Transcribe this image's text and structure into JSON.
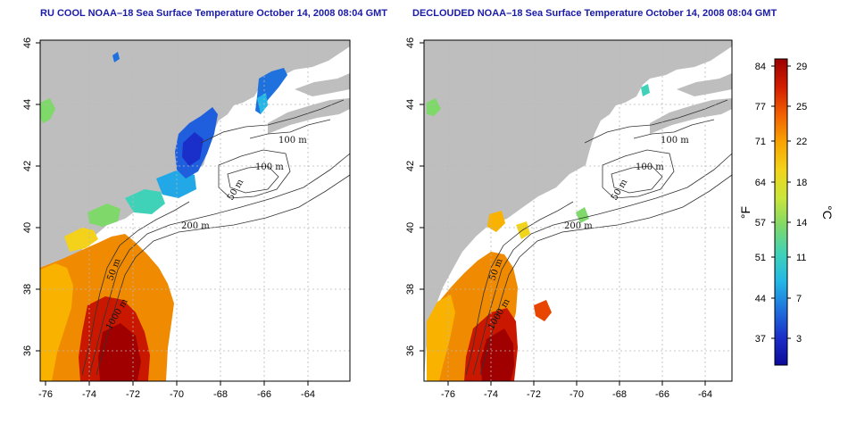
{
  "panels": [
    {
      "title": "RU COOL NOAA–18 Sea Surface Temperature October 14, 2008 08:04 GMT",
      "x_ticks": [
        "-76",
        "-74",
        "-72",
        "-70",
        "-68",
        "-66",
        "-64"
      ],
      "y_ticks": [
        "46",
        "44",
        "42",
        "40",
        "38",
        "36"
      ],
      "contour_labels": [
        "100 m",
        "100 m",
        "50 m",
        "200 m",
        "50 m",
        "1000 m"
      ]
    },
    {
      "title": "DECLOUDED NOAA–18 Sea Surface Temperature October 14, 2008 08:04 GMT",
      "x_ticks": [
        "-76",
        "-74",
        "-72",
        "-70",
        "-68",
        "-66",
        "-64"
      ],
      "y_ticks": [
        "46",
        "44",
        "42",
        "40",
        "38",
        "36"
      ],
      "contour_labels": [
        "100 m",
        "100 m",
        "50 m",
        "200 m",
        "50 m",
        "1000 m"
      ]
    }
  ],
  "colorbar": {
    "fahrenheit_ticks": [
      "84",
      "77",
      "71",
      "64",
      "57",
      "51",
      "44",
      "37"
    ],
    "celsius_ticks": [
      "29",
      "25",
      "22",
      "18",
      "14",
      "11",
      "7",
      "3"
    ],
    "fahrenheit_label": "°F",
    "celsius_label": "°C",
    "colors": [
      "#9b0000",
      "#d31d00",
      "#f26000",
      "#f9a400",
      "#f2d41b",
      "#c9e63a",
      "#7fd86a",
      "#3fd2b8",
      "#22b7e6",
      "#1f72de",
      "#1a2fc9",
      "#0d0a9a"
    ]
  },
  "map_colors": {
    "land": "#bebebe",
    "ocean": "#ffffff",
    "contour": "#333333",
    "grid": "#b8b8b8"
  }
}
